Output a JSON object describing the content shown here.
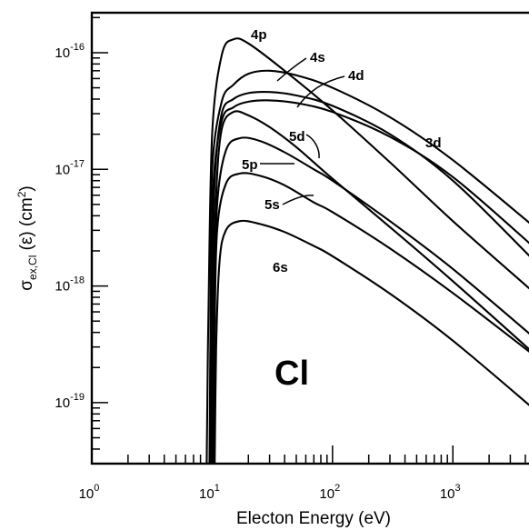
{
  "chart_data": {
    "type": "line",
    "title": "",
    "xlabel": "Electon Energy (eV)",
    "ylabel": "σex,Cl (ε) (cm²)",
    "ylabel_parts": {
      "sigma": "σ",
      "subscript": "ex,Cl",
      "middle": " (ε) (cm",
      "sup": "2",
      "end": ")"
    },
    "x_scale": "log",
    "y_scale": "log",
    "xlim": [
      1,
      4600
    ],
    "ylim": [
      3e-20,
      2.2e-16
    ],
    "grid": false,
    "legend": "none",
    "annotation": "Cl",
    "x_ticks": [
      {
        "base": "10",
        "exp": "0",
        "value": 1
      },
      {
        "base": "10",
        "exp": "1",
        "value": 10
      },
      {
        "base": "10",
        "exp": "2",
        "value": 100
      },
      {
        "base": "10",
        "exp": "3",
        "value": 1000
      }
    ],
    "y_ticks": [
      {
        "base": "10",
        "exp": "-19",
        "value": 1e-19
      },
      {
        "base": "10",
        "exp": "-18",
        "value": 1e-18
      },
      {
        "base": "10",
        "exp": "-17",
        "value": 1e-17
      },
      {
        "base": "10",
        "exp": "-16",
        "value": 1e-16
      }
    ],
    "series": [
      {
        "name": "4p",
        "x": [
          9.0,
          9.3,
          10.0,
          12.0,
          15.0,
          20.0,
          40.0,
          100,
          300,
          1000,
          4600
        ],
        "y": [
          3e-20,
          5e-19,
          2e-17,
          9.5e-17,
          1.3e-16,
          1.2e-16,
          7e-17,
          3.2e-17,
          1.15e-17,
          3.6e-18,
          9e-19
        ]
      },
      {
        "name": "4s",
        "x": [
          9.5,
          9.7,
          10.0,
          12.0,
          15.0,
          20.0,
          30.0,
          50.0,
          100,
          300,
          1000,
          4600
        ],
        "y": [
          3e-20,
          6e-19,
          1e-17,
          3.8e-17,
          5.3e-17,
          6.6e-17,
          7e-17,
          6.4e-17,
          5e-17,
          2.8e-17,
          1.2e-17,
          3.3e-18
        ]
      },
      {
        "name": "4d",
        "x": [
          9.8,
          10.0,
          10.5,
          12.0,
          15.0,
          20.0,
          30.0,
          50.0,
          100,
          300,
          1000,
          4600
        ],
        "y": [
          3e-20,
          6e-19,
          8e-18,
          3e-17,
          4e-17,
          4.5e-17,
          4.6e-17,
          4.3e-17,
          3.5e-17,
          2e-17,
          8e-18,
          1.7e-18
        ]
      },
      {
        "name": "3d",
        "x": [
          9.6,
          9.8,
          10.2,
          12.0,
          15.0,
          20.0,
          30.0,
          50.0,
          100,
          300,
          1000,
          4600
        ],
        "y": [
          3e-20,
          5e-19,
          7e-18,
          2.6e-17,
          3.4e-17,
          3.8e-17,
          3.9e-17,
          3.7e-17,
          3.1e-17,
          1.9e-17,
          8.6e-18,
          2.2e-18
        ]
      },
      {
        "name": "5d",
        "x": [
          10.0,
          10.2,
          10.8,
          12.0,
          15.0,
          20.0,
          30.0,
          50.0,
          100,
          300,
          1000,
          4600
        ],
        "y": [
          3e-20,
          5e-19,
          6e-18,
          2.2e-17,
          3.1e-17,
          2.9e-17,
          2.3e-17,
          1.55e-17,
          8.3e-18,
          3.2e-18,
          1.1e-18,
          2.7e-19
        ]
      },
      {
        "name": "5p",
        "x": [
          10.0,
          10.3,
          11.0,
          13.0,
          17.0,
          25.0,
          40.0,
          70.0,
          100,
          300,
          1000,
          4600
        ],
        "y": [
          3e-20,
          5e-19,
          5e-18,
          1.45e-17,
          1.85e-17,
          1.75e-17,
          1.4e-17,
          1e-17,
          8e-18,
          3.6e-18,
          1.4e-18,
          3.7e-19
        ]
      },
      {
        "name": "5s",
        "x": [
          10.2,
          10.5,
          11.0,
          13.0,
          17.0,
          25.0,
          40.0,
          70.0,
          100,
          300,
          1000,
          4600
        ],
        "y": [
          3e-20,
          4e-19,
          3e-18,
          7.5e-18,
          9.2e-18,
          8.8e-18,
          7.3e-18,
          5.2e-18,
          4.3e-18,
          2.1e-18,
          8.7e-19,
          2.6e-19
        ]
      },
      {
        "name": "6s",
        "x": [
          10.5,
          10.8,
          11.5,
          13.0,
          17.0,
          25.0,
          40.0,
          70.0,
          100,
          300,
          1000,
          4600
        ],
        "y": [
          3e-20,
          3e-19,
          1.6e-18,
          3e-18,
          3.6e-18,
          3.4e-18,
          2.9e-18,
          2.2e-18,
          1.8e-18,
          8.6e-19,
          3.4e-19,
          9e-20
        ]
      }
    ]
  }
}
